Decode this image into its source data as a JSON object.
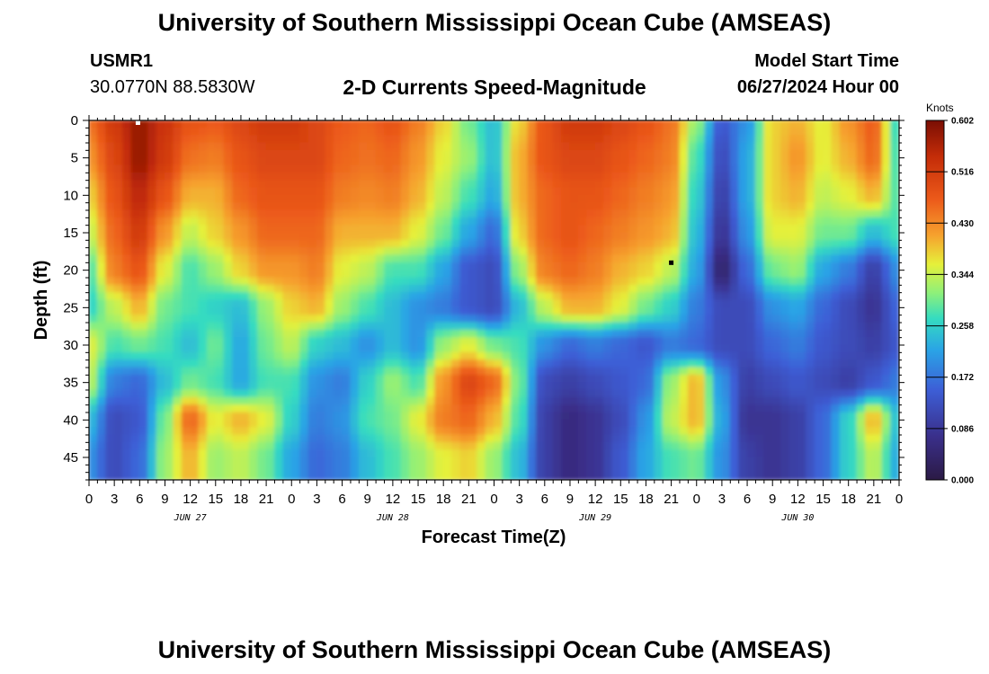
{
  "header": {
    "title": "University of Southern Mississippi Ocean Cube (AMSEAS)",
    "station_name": "USMR1",
    "coordinates": "30.0770N  88.5830W",
    "subtitle": "2-D Currents Speed-Magnitude",
    "model_start_label": "Model Start Time",
    "model_start_value": "06/27/2024 Hour 00"
  },
  "footer": {
    "title": "University of Southern Mississippi Ocean Cube (AMSEAS)"
  },
  "chart_data": {
    "type": "heatmap",
    "xlabel": "Forecast Time(Z)",
    "ylabel": "Depth (ft)",
    "x_unit": "hours since model start",
    "xlim": [
      0,
      96
    ],
    "ylim": [
      0,
      48
    ],
    "y_inverted": true,
    "x_tick_labels": [
      "0",
      "3",
      "6",
      "9",
      "12",
      "15",
      "18",
      "21",
      "0",
      "3",
      "6",
      "9",
      "12",
      "15",
      "18",
      "21",
      "0",
      "3",
      "6",
      "9",
      "12",
      "15",
      "18",
      "21",
      "0",
      "3",
      "6",
      "9",
      "12",
      "15",
      "18",
      "21",
      "0"
    ],
    "y_tick_labels": [
      "0",
      "5",
      "10",
      "15",
      "20",
      "25",
      "30",
      "35",
      "40",
      "45"
    ],
    "day_labels": [
      "JUN 27",
      "JUN 28",
      "JUN 29",
      "JUN 30"
    ],
    "colorbar": {
      "title": "Knots",
      "ticks": [
        "0.602",
        "0.516",
        "0.430",
        "0.344",
        "0.258",
        "0.172",
        "0.086",
        "0.000"
      ],
      "range": [
        0,
        0.602
      ]
    },
    "approx_field": {
      "description": "approximate speed magnitude (knots) at depth rows 0,5,...,45 ft for forecast hours 0,3,...,96",
      "depths": [
        0,
        5,
        10,
        15,
        20,
        25,
        30,
        35,
        40,
        45
      ],
      "hours": [
        0,
        3,
        6,
        9,
        12,
        15,
        18,
        21,
        24,
        27,
        30,
        33,
        36,
        39,
        42,
        45,
        48,
        51,
        54,
        57,
        60,
        63,
        66,
        69,
        72,
        75,
        78,
        81,
        84,
        87,
        90,
        93,
        96
      ],
      "values": [
        [
          0.45,
          0.52,
          0.58,
          0.53,
          0.48,
          0.47,
          0.5,
          0.52,
          0.52,
          0.5,
          0.47,
          0.46,
          0.48,
          0.44,
          0.38,
          0.3,
          0.24,
          0.38,
          0.48,
          0.52,
          0.52,
          0.5,
          0.48,
          0.45,
          0.32,
          0.14,
          0.2,
          0.38,
          0.4,
          0.36,
          0.42,
          0.47,
          0.26
        ],
        [
          0.42,
          0.5,
          0.58,
          0.52,
          0.45,
          0.44,
          0.48,
          0.5,
          0.5,
          0.5,
          0.46,
          0.45,
          0.46,
          0.42,
          0.36,
          0.32,
          0.24,
          0.4,
          0.48,
          0.5,
          0.5,
          0.48,
          0.46,
          0.44,
          0.28,
          0.12,
          0.22,
          0.38,
          0.42,
          0.36,
          0.4,
          0.46,
          0.27
        ],
        [
          0.38,
          0.48,
          0.55,
          0.48,
          0.4,
          0.4,
          0.46,
          0.48,
          0.48,
          0.48,
          0.44,
          0.43,
          0.44,
          0.4,
          0.34,
          0.28,
          0.22,
          0.4,
          0.46,
          0.48,
          0.48,
          0.46,
          0.44,
          0.42,
          0.26,
          0.1,
          0.22,
          0.38,
          0.4,
          0.34,
          0.36,
          0.4,
          0.28
        ],
        [
          0.34,
          0.46,
          0.52,
          0.42,
          0.34,
          0.38,
          0.42,
          0.46,
          0.46,
          0.46,
          0.4,
          0.4,
          0.4,
          0.36,
          0.3,
          0.22,
          0.16,
          0.38,
          0.46,
          0.48,
          0.46,
          0.44,
          0.42,
          0.4,
          0.24,
          0.08,
          0.2,
          0.36,
          0.36,
          0.3,
          0.3,
          0.24,
          0.28
        ],
        [
          0.28,
          0.44,
          0.48,
          0.36,
          0.28,
          0.32,
          0.38,
          0.42,
          0.42,
          0.44,
          0.36,
          0.34,
          0.28,
          0.28,
          0.22,
          0.14,
          0.12,
          0.32,
          0.44,
          0.46,
          0.44,
          0.4,
          0.38,
          0.34,
          0.22,
          0.04,
          0.16,
          0.3,
          0.32,
          0.22,
          0.18,
          0.1,
          0.2
        ],
        [
          0.26,
          0.34,
          0.4,
          0.3,
          0.28,
          0.26,
          0.24,
          0.32,
          0.38,
          0.4,
          0.32,
          0.28,
          0.24,
          0.2,
          0.18,
          0.14,
          0.12,
          0.24,
          0.34,
          0.4,
          0.4,
          0.36,
          0.3,
          0.26,
          0.18,
          0.12,
          0.12,
          0.2,
          0.22,
          0.16,
          0.12,
          0.08,
          0.16
        ],
        [
          0.36,
          0.28,
          0.3,
          0.28,
          0.24,
          0.3,
          0.22,
          0.3,
          0.34,
          0.26,
          0.24,
          0.2,
          0.24,
          0.2,
          0.32,
          0.36,
          0.3,
          0.28,
          0.2,
          0.16,
          0.18,
          0.16,
          0.14,
          0.18,
          0.16,
          0.12,
          0.12,
          0.16,
          0.18,
          0.14,
          0.12,
          0.1,
          0.14
        ],
        [
          0.34,
          0.18,
          0.16,
          0.24,
          0.3,
          0.28,
          0.22,
          0.28,
          0.28,
          0.2,
          0.18,
          0.26,
          0.32,
          0.28,
          0.42,
          0.5,
          0.46,
          0.3,
          0.12,
          0.1,
          0.12,
          0.14,
          0.16,
          0.32,
          0.4,
          0.2,
          0.1,
          0.12,
          0.14,
          0.12,
          0.1,
          0.14,
          0.18
        ],
        [
          0.24,
          0.12,
          0.14,
          0.3,
          0.46,
          0.36,
          0.4,
          0.36,
          0.26,
          0.18,
          0.2,
          0.28,
          0.3,
          0.36,
          0.44,
          0.46,
          0.4,
          0.28,
          0.1,
          0.06,
          0.08,
          0.12,
          0.2,
          0.34,
          0.4,
          0.22,
          0.08,
          0.08,
          0.1,
          0.16,
          0.26,
          0.4,
          0.24
        ],
        [
          0.2,
          0.12,
          0.16,
          0.32,
          0.4,
          0.32,
          0.34,
          0.3,
          0.22,
          0.16,
          0.18,
          0.24,
          0.28,
          0.32,
          0.36,
          0.38,
          0.32,
          0.24,
          0.1,
          0.06,
          0.08,
          0.14,
          0.22,
          0.28,
          0.3,
          0.2,
          0.1,
          0.08,
          0.1,
          0.16,
          0.26,
          0.34,
          0.22
        ]
      ]
    },
    "markers": [
      {
        "hour": 5.8,
        "depth": 0.3,
        "color": "#ffffff"
      },
      {
        "hour": 69.0,
        "depth": 19.0,
        "color": "#000000"
      }
    ]
  }
}
